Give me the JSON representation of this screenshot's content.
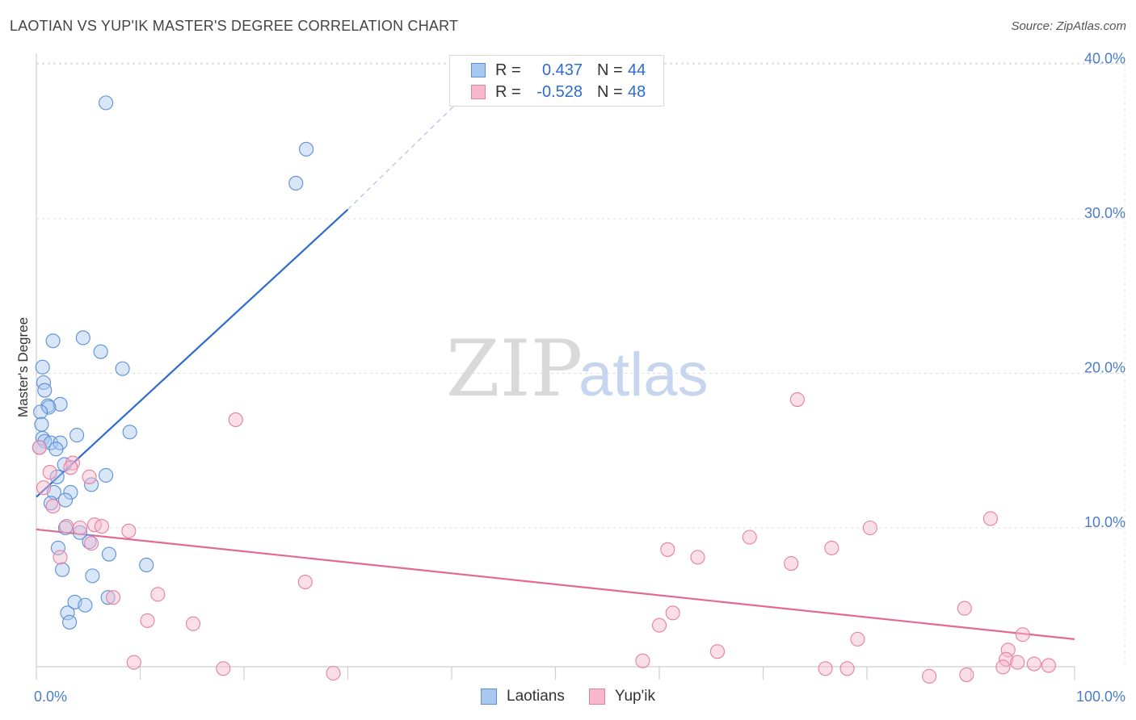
{
  "title": "LAOTIAN VS YUP'IK MASTER'S DEGREE CORRELATION CHART",
  "source": "Source: ZipAtlas.com",
  "watermark": {
    "zip": "ZIP",
    "atlas": "atlas"
  },
  "legend": {
    "series": [
      {
        "name": "Laotians",
        "r_label": "R =",
        "r_value": "0.437",
        "n_label": "N =",
        "n_value": "44",
        "fill": "#a9c8f0",
        "stroke": "#5b8fd6"
      },
      {
        "name": "Yup'ik",
        "r_label": "R =",
        "r_value": "-0.528",
        "n_label": "N =",
        "n_value": "48",
        "fill": "#f7b8cb",
        "stroke": "#e57fa0"
      }
    ]
  },
  "chart_data": {
    "type": "scatter",
    "title": "LAOTIAN VS YUP'IK MASTER'S DEGREE CORRELATION CHART",
    "xlabel": "",
    "ylabel": "Master's Degree",
    "xlim": [
      0,
      100
    ],
    "ylim": [
      0,
      42
    ],
    "x_tick_labels": [
      "0.0%",
      "100.0%"
    ],
    "y_ticks": [
      10,
      20,
      30,
      40
    ],
    "y_tick_labels": [
      "10.0%",
      "20.0%",
      "30.0%",
      "40.0%"
    ],
    "grid": true,
    "series": [
      {
        "name": "Laotians",
        "color": "#5b8fd6",
        "fill": "#a9c8f0",
        "points": [
          [
            6.7,
            37.5
          ],
          [
            26,
            34.5
          ],
          [
            25,
            32.3
          ],
          [
            1.6,
            22.1
          ],
          [
            4.5,
            22.3
          ],
          [
            6.2,
            21.4
          ],
          [
            8.3,
            20.3
          ],
          [
            0.6,
            20.4
          ],
          [
            0.7,
            19.4
          ],
          [
            0.8,
            18.9
          ],
          [
            1.1,
            17.9
          ],
          [
            2.3,
            18.0
          ],
          [
            1.2,
            17.8
          ],
          [
            0.4,
            17.5
          ],
          [
            0.5,
            16.7
          ],
          [
            9.0,
            16.2
          ],
          [
            3.9,
            16.0
          ],
          [
            0.6,
            15.8
          ],
          [
            0.8,
            15.6
          ],
          [
            1.4,
            15.5
          ],
          [
            2.3,
            15.5
          ],
          [
            0.3,
            15.2
          ],
          [
            1.9,
            15.1
          ],
          [
            2.7,
            14.1
          ],
          [
            2.0,
            13.3
          ],
          [
            6.7,
            13.4
          ],
          [
            5.3,
            12.8
          ],
          [
            1.7,
            12.3
          ],
          [
            3.3,
            12.3
          ],
          [
            2.8,
            11.8
          ],
          [
            1.4,
            11.6
          ],
          [
            2.8,
            10.0
          ],
          [
            4.2,
            9.7
          ],
          [
            5.1,
            9.1
          ],
          [
            2.1,
            8.7
          ],
          [
            7.0,
            8.3
          ],
          [
            10.6,
            7.6
          ],
          [
            2.5,
            7.3
          ],
          [
            5.4,
            6.9
          ],
          [
            6.9,
            5.5
          ],
          [
            3.7,
            5.2
          ],
          [
            4.7,
            5.0
          ],
          [
            3.0,
            4.5
          ],
          [
            3.2,
            3.9
          ]
        ]
      },
      {
        "name": "Yup'ik",
        "color": "#e57fa0",
        "fill": "#f7b8cb",
        "points": [
          [
            0.3,
            15.2
          ],
          [
            1.3,
            13.6
          ],
          [
            3.5,
            14.2
          ],
          [
            3.3,
            13.9
          ],
          [
            5.1,
            13.3
          ],
          [
            0.7,
            12.6
          ],
          [
            1.6,
            11.4
          ],
          [
            5.6,
            10.2
          ],
          [
            6.3,
            10.1
          ],
          [
            2.9,
            10.1
          ],
          [
            4.2,
            10.0
          ],
          [
            8.9,
            9.8
          ],
          [
            5.3,
            9.0
          ],
          [
            2.3,
            8.1
          ],
          [
            19.2,
            17.0
          ],
          [
            73.3,
            18.3
          ],
          [
            91.9,
            10.6
          ],
          [
            80.3,
            10.0
          ],
          [
            68.7,
            9.4
          ],
          [
            76.6,
            8.7
          ],
          [
            60.8,
            8.6
          ],
          [
            63.7,
            8.1
          ],
          [
            72.7,
            7.7
          ],
          [
            25.9,
            6.5
          ],
          [
            11.7,
            5.7
          ],
          [
            7.4,
            5.5
          ],
          [
            89.4,
            4.8
          ],
          [
            61.3,
            4.5
          ],
          [
            10.7,
            4.0
          ],
          [
            15.1,
            3.8
          ],
          [
            60.0,
            3.7
          ],
          [
            95.0,
            3.1
          ],
          [
            79.1,
            2.8
          ],
          [
            93.6,
            2.1
          ],
          [
            65.6,
            2.0
          ],
          [
            93.4,
            1.5
          ],
          [
            94.5,
            1.3
          ],
          [
            58.4,
            1.4
          ],
          [
            9.4,
            1.3
          ],
          [
            96.1,
            1.2
          ],
          [
            97.5,
            1.1
          ],
          [
            93.1,
            1.0
          ],
          [
            18.0,
            0.9
          ],
          [
            76.0,
            0.9
          ],
          [
            78.1,
            0.9
          ],
          [
            28.6,
            0.6
          ],
          [
            86.0,
            0.4
          ],
          [
            89.6,
            0.5
          ]
        ]
      }
    ],
    "trend_lines": [
      {
        "series": "Laotians",
        "from": [
          0,
          12.0
        ],
        "to": [
          30,
          30.6
        ],
        "dashed_to": [
          41,
          37.8
        ]
      },
      {
        "series": "Yup'ik",
        "from": [
          0,
          9.9
        ],
        "to": [
          100,
          2.8
        ]
      }
    ]
  }
}
